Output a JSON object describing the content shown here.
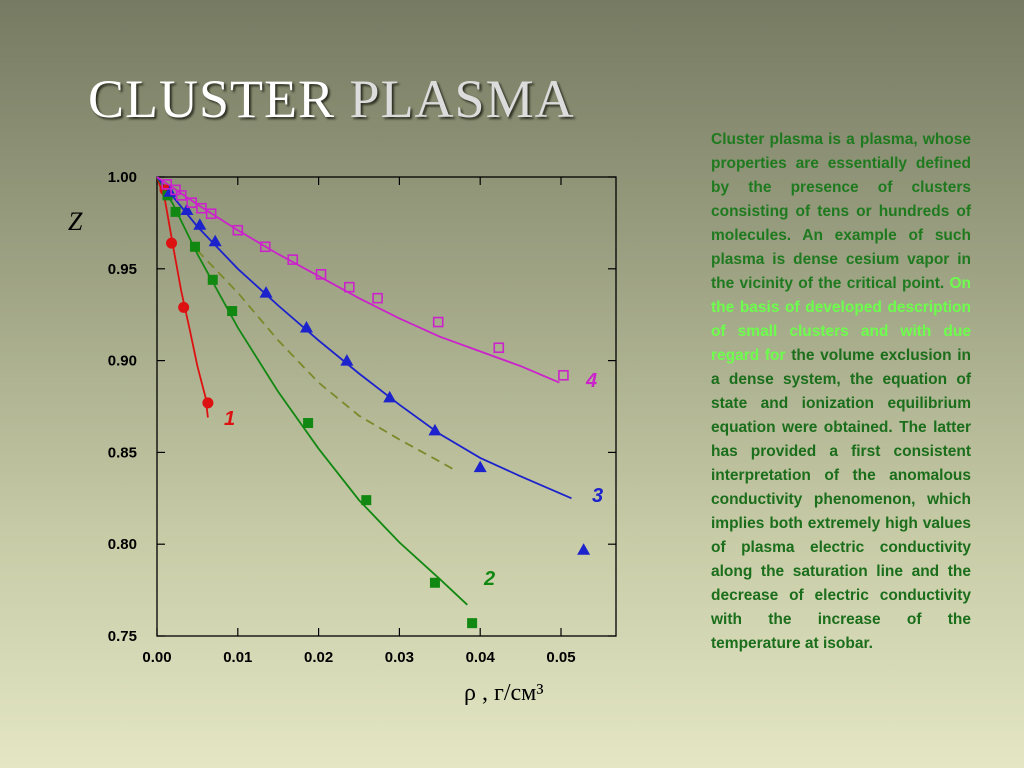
{
  "title": {
    "word1": "CLUSTER",
    "word2": "PLASMA"
  },
  "description": {
    "part1": "Cluster plasma is a plasma, whose properties are essentially defined by the presence of clusters consisting of tens or hundreds of molecules. An example of such plasma is dense cesium vapor in the vicinity of the critical point.",
    "part2": "On the basis of developed description of small clusters and with due regard for",
    "part3": "the volume exclusion in a dense system, the equation of state and ionization equilibrium equation were obtained. The latter has provided a first consistent interpretation of the anomalous conductivity phenomenon, which implies both extremely high values of plasma electric conductivity along the saturation line and the decrease of electric conductivity with the increase of the temperature at isobar."
  },
  "chart_data": {
    "type": "scatter",
    "ylabel": "Z",
    "xlabel": "ρ , г/см³",
    "xlim": [
      0,
      0.056
    ],
    "ylim": [
      0.75,
      1.0
    ],
    "x_ticks": [
      "0.00",
      "0.01",
      "0.02",
      "0.03",
      "0.04",
      "0.05"
    ],
    "y_ticks": [
      "1.00",
      "0.95",
      "0.90",
      "0.85",
      "0.80",
      "0.75"
    ],
    "grid": false,
    "series": [
      {
        "name": "1",
        "color": "#dd1111",
        "marker": "circle",
        "points": [
          [
            0.001,
            0.993
          ],
          [
            0.0018,
            0.964
          ],
          [
            0.0033,
            0.929
          ],
          [
            0.0063,
            0.877
          ]
        ],
        "line": [
          [
            0.0,
            1.0
          ],
          [
            0.001,
            0.987
          ],
          [
            0.002,
            0.962
          ],
          [
            0.003,
            0.938
          ],
          [
            0.004,
            0.918
          ],
          [
            0.005,
            0.897
          ],
          [
            0.006,
            0.88
          ],
          [
            0.0063,
            0.869
          ]
        ]
      },
      {
        "name": "2",
        "color": "#118811",
        "marker": "square",
        "points": [
          [
            0.0013,
            0.99
          ],
          [
            0.0023,
            0.981
          ],
          [
            0.0047,
            0.962
          ],
          [
            0.0069,
            0.944
          ],
          [
            0.0093,
            0.927
          ],
          [
            0.0187,
            0.866
          ],
          [
            0.0259,
            0.824
          ],
          [
            0.0344,
            0.779
          ],
          [
            0.039,
            0.757
          ]
        ],
        "line": [
          [
            0.0,
            1.0
          ],
          [
            0.002,
            0.985
          ],
          [
            0.005,
            0.958
          ],
          [
            0.01,
            0.918
          ],
          [
            0.015,
            0.883
          ],
          [
            0.02,
            0.852
          ],
          [
            0.025,
            0.824
          ],
          [
            0.03,
            0.801
          ],
          [
            0.035,
            0.781
          ],
          [
            0.0384,
            0.767
          ]
        ],
        "dashed": [
          [
            0.005,
            0.96
          ],
          [
            0.01,
            0.937
          ],
          [
            0.015,
            0.911
          ],
          [
            0.02,
            0.888
          ],
          [
            0.025,
            0.87
          ],
          [
            0.03,
            0.857
          ],
          [
            0.035,
            0.845
          ],
          [
            0.037,
            0.84
          ]
        ]
      },
      {
        "name": "3",
        "color": "#1c22cc",
        "marker": "triangle",
        "points": [
          [
            0.0016,
            0.992
          ],
          [
            0.0037,
            0.982
          ],
          [
            0.0053,
            0.974
          ],
          [
            0.0072,
            0.965
          ],
          [
            0.0135,
            0.937
          ],
          [
            0.0185,
            0.918
          ],
          [
            0.0235,
            0.9
          ],
          [
            0.0288,
            0.88
          ],
          [
            0.0344,
            0.862
          ],
          [
            0.04,
            0.842
          ],
          [
            0.0528,
            0.797
          ]
        ],
        "line": [
          [
            0.0,
            1.0
          ],
          [
            0.005,
            0.973
          ],
          [
            0.01,
            0.95
          ],
          [
            0.015,
            0.93
          ],
          [
            0.02,
            0.911
          ],
          [
            0.025,
            0.893
          ],
          [
            0.03,
            0.876
          ],
          [
            0.035,
            0.86
          ],
          [
            0.04,
            0.847
          ],
          [
            0.045,
            0.837
          ],
          [
            0.0513,
            0.825
          ]
        ]
      },
      {
        "name": "4",
        "color": "#cc22cc",
        "marker": "open-square",
        "points": [
          [
            0.0012,
            0.996
          ],
          [
            0.0023,
            0.993
          ],
          [
            0.003,
            0.99
          ],
          [
            0.0043,
            0.986
          ],
          [
            0.0055,
            0.983
          ],
          [
            0.0067,
            0.98
          ],
          [
            0.01,
            0.971
          ],
          [
            0.0134,
            0.962
          ],
          [
            0.0168,
            0.955
          ],
          [
            0.0203,
            0.947
          ],
          [
            0.0238,
            0.94
          ],
          [
            0.0273,
            0.934
          ],
          [
            0.0348,
            0.921
          ],
          [
            0.0423,
            0.907
          ],
          [
            0.0503,
            0.892
          ]
        ],
        "line": [
          [
            0.0,
            1.0
          ],
          [
            0.005,
            0.985
          ],
          [
            0.01,
            0.971
          ],
          [
            0.015,
            0.958
          ],
          [
            0.02,
            0.946
          ],
          [
            0.025,
            0.934
          ],
          [
            0.03,
            0.923
          ],
          [
            0.035,
            0.913
          ],
          [
            0.04,
            0.905
          ],
          [
            0.045,
            0.897
          ],
          [
            0.0498,
            0.888
          ]
        ]
      }
    ]
  }
}
